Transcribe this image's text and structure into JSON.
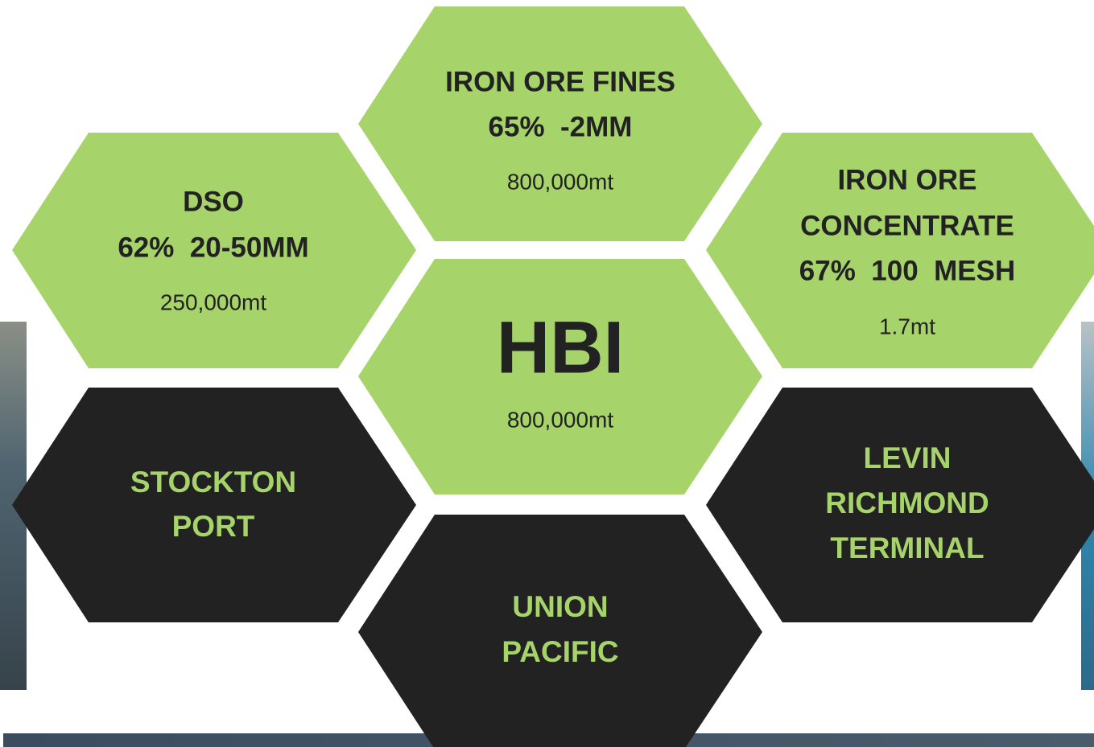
{
  "hexagons": [
    {
      "lines": [
        "DSO",
        "62%  20-50MM"
      ],
      "amount": "250,000mt"
    },
    {
      "lines": [
        "IRON ORE FINES",
        "65%  -2MM"
      ],
      "amount": "800,000mt"
    },
    {
      "lines": [
        "IRON ORE",
        "CONCENTRATE",
        "67%  100  MESH"
      ],
      "amount": "1.7mt"
    },
    {
      "lines": [
        "HBI"
      ],
      "amount": "800,000mt"
    },
    {
      "lines": [
        "STOCKTON",
        "PORT"
      ]
    },
    {
      "lines": [
        "UNION",
        "PACIFIC"
      ]
    },
    {
      "lines": [
        "LEVIN",
        "RICHMOND",
        "TERMINAL"
      ]
    }
  ]
}
